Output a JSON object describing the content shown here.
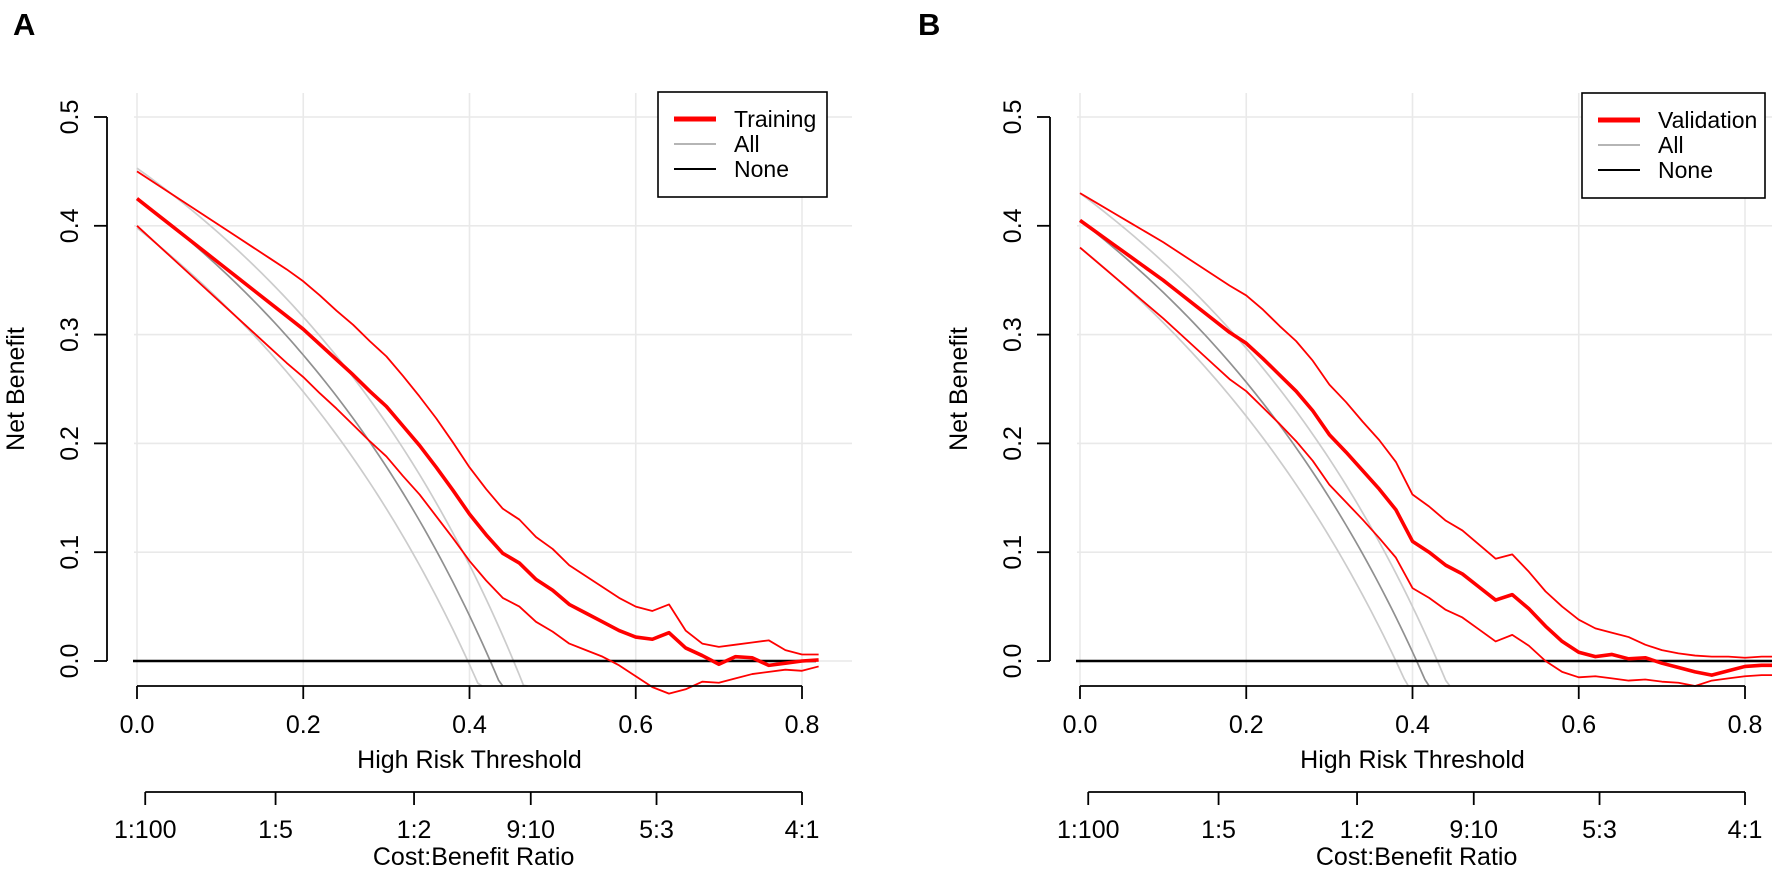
{
  "figure": {
    "background": "#ffffff",
    "panel_labels": [
      "A",
      "B"
    ]
  },
  "chart_data": [
    {
      "type": "line",
      "panel_label": "A",
      "xlabel": "High Risk Threshold",
      "ylabel": "Net Benefit",
      "xlabel2": "Cost:Benefit Ratio",
      "xlim": [
        -0.004,
        0.862
      ],
      "ylim": [
        -0.023,
        0.522
      ],
      "grid": true,
      "x_ticks": [
        0.0,
        0.2,
        0.4,
        0.6,
        0.8
      ],
      "x_tick_labels": [
        "0.0",
        "0.2",
        "0.4",
        "0.6",
        "0.8"
      ],
      "y_ticks": [
        0.0,
        0.1,
        0.2,
        0.3,
        0.4,
        0.5
      ],
      "y_tick_labels": [
        "0.0",
        "0.1",
        "0.2",
        "0.3",
        "0.4",
        "0.5"
      ],
      "cost_benefit_ticks": [
        {
          "label": "1:100",
          "threshold": 0.0099
        },
        {
          "label": "1:5",
          "threshold": 0.1667
        },
        {
          "label": "1:2",
          "threshold": 0.3333
        },
        {
          "label": "9:10",
          "threshold": 0.4737
        },
        {
          "label": "5:3",
          "threshold": 0.625
        },
        {
          "label": "4:1",
          "threshold": 0.8
        }
      ],
      "legend": {
        "position": "top-right",
        "entries": [
          {
            "label": "Training",
            "color": "#FF0000",
            "width": 5
          },
          {
            "label": "All",
            "color": "#b5b5b5",
            "width": 2
          },
          {
            "label": "None",
            "color": "#000000",
            "width": 2
          }
        ]
      },
      "thresholds": [
        0.0,
        0.02,
        0.04,
        0.06,
        0.08,
        0.1,
        0.12,
        0.14,
        0.16,
        0.18,
        0.2,
        0.22,
        0.24,
        0.26,
        0.28,
        0.3,
        0.32,
        0.34,
        0.36,
        0.38,
        0.4,
        0.42,
        0.44,
        0.46,
        0.48,
        0.5,
        0.52,
        0.54,
        0.56,
        0.58,
        0.6,
        0.62,
        0.64,
        0.66,
        0.68,
        0.7,
        0.72,
        0.74,
        0.76,
        0.78,
        0.8,
        0.82
      ],
      "series": [
        {
          "name": "Training",
          "role": "model",
          "color": "#FF0000",
          "values": [
            0.425,
            0.413,
            0.401,
            0.389,
            0.377,
            0.365,
            0.353,
            0.341,
            0.329,
            0.317,
            0.305,
            0.291,
            0.277,
            0.263,
            0.248,
            0.234,
            0.216,
            0.198,
            0.178,
            0.157,
            0.135,
            0.116,
            0.099,
            0.09,
            0.075,
            0.065,
            0.052,
            0.044,
            0.036,
            0.028,
            0.022,
            0.02,
            0.026,
            0.012,
            0.005,
            -0.003,
            0.004,
            0.003,
            -0.004,
            -0.002,
            0.0,
            0.001
          ]
        },
        {
          "name": "Training upper 95% CI",
          "role": "model-upper",
          "color": "#FF0000",
          "values": [
            0.45,
            0.44,
            0.43,
            0.42,
            0.41,
            0.4,
            0.39,
            0.38,
            0.37,
            0.36,
            0.349,
            0.336,
            0.322,
            0.309,
            0.294,
            0.28,
            0.262,
            0.243,
            0.223,
            0.201,
            0.178,
            0.158,
            0.14,
            0.13,
            0.114,
            0.103,
            0.088,
            0.078,
            0.068,
            0.058,
            0.05,
            0.046,
            0.052,
            0.028,
            0.016,
            0.013,
            0.015,
            0.017,
            0.019,
            0.01,
            0.006,
            0.006
          ]
        },
        {
          "name": "Training lower 95% CI",
          "role": "model-lower",
          "color": "#FF0000",
          "values": [
            0.4,
            0.386,
            0.372,
            0.358,
            0.344,
            0.33,
            0.316,
            0.302,
            0.288,
            0.274,
            0.261,
            0.246,
            0.232,
            0.217,
            0.202,
            0.188,
            0.17,
            0.153,
            0.133,
            0.113,
            0.092,
            0.074,
            0.058,
            0.05,
            0.036,
            0.027,
            0.016,
            0.01,
            0.004,
            -0.004,
            -0.014,
            -0.024,
            -0.03,
            -0.026,
            -0.019,
            -0.02,
            -0.016,
            -0.012,
            -0.01,
            -0.008,
            -0.009,
            -0.005
          ]
        },
        {
          "name": "All",
          "role": "treat-all",
          "color": "#909090",
          "ci_color": "#cccccc",
          "prevalence": 0.425,
          "prevalence_ci": [
            0.398,
            0.453
          ]
        },
        {
          "name": "None",
          "role": "treat-none",
          "color": "#000000",
          "value": 0.0
        }
      ]
    },
    {
      "type": "line",
      "panel_label": "B",
      "xlabel": "High Risk Threshold",
      "ylabel": "Net Benefit",
      "xlabel2": "Cost:Benefit Ratio",
      "xlim": [
        -0.004,
        0.833
      ],
      "ylim": [
        -0.023,
        0.522
      ],
      "grid": true,
      "x_ticks": [
        0.0,
        0.2,
        0.4,
        0.6,
        0.8
      ],
      "x_tick_labels": [
        "0.0",
        "0.2",
        "0.4",
        "0.6",
        "0.8"
      ],
      "y_ticks": [
        0.0,
        0.1,
        0.2,
        0.3,
        0.4,
        0.5
      ],
      "y_tick_labels": [
        "0.0",
        "0.1",
        "0.2",
        "0.3",
        "0.4",
        "0.5"
      ],
      "cost_benefit_ticks": [
        {
          "label": "1:100",
          "threshold": 0.0099
        },
        {
          "label": "1:5",
          "threshold": 0.1667
        },
        {
          "label": "1:2",
          "threshold": 0.3333
        },
        {
          "label": "9:10",
          "threshold": 0.4737
        },
        {
          "label": "5:3",
          "threshold": 0.625
        },
        {
          "label": "4:1",
          "threshold": 0.8
        }
      ],
      "legend": {
        "position": "top-right",
        "entries": [
          {
            "label": "Validation",
            "color": "#FF0000",
            "width": 5
          },
          {
            "label": "All",
            "color": "#b5b5b5",
            "width": 2
          },
          {
            "label": "None",
            "color": "#000000",
            "width": 2
          }
        ]
      },
      "thresholds": [
        0.0,
        0.02,
        0.04,
        0.06,
        0.08,
        0.1,
        0.12,
        0.14,
        0.16,
        0.18,
        0.2,
        0.22,
        0.24,
        0.26,
        0.28,
        0.3,
        0.32,
        0.34,
        0.36,
        0.38,
        0.4,
        0.42,
        0.44,
        0.46,
        0.48,
        0.5,
        0.52,
        0.54,
        0.56,
        0.58,
        0.6,
        0.62,
        0.64,
        0.66,
        0.68,
        0.7,
        0.72,
        0.74,
        0.76,
        0.78,
        0.8,
        0.82,
        0.84
      ],
      "series": [
        {
          "name": "Validation",
          "role": "model",
          "color": "#FF0000",
          "values": [
            0.405,
            0.394,
            0.383,
            0.372,
            0.361,
            0.35,
            0.338,
            0.326,
            0.314,
            0.302,
            0.292,
            0.278,
            0.263,
            0.248,
            0.23,
            0.208,
            0.192,
            0.175,
            0.158,
            0.139,
            0.11,
            0.1,
            0.088,
            0.08,
            0.068,
            0.056,
            0.061,
            0.048,
            0.032,
            0.018,
            0.008,
            0.004,
            0.006,
            0.002,
            0.003,
            -0.002,
            -0.006,
            -0.01,
            -0.013,
            -0.009,
            -0.005,
            -0.004,
            -0.004
          ]
        },
        {
          "name": "Validation upper 95% CI",
          "role": "model-upper",
          "color": "#FF0000",
          "values": [
            0.43,
            0.421,
            0.412,
            0.403,
            0.394,
            0.385,
            0.375,
            0.365,
            0.355,
            0.345,
            0.336,
            0.323,
            0.308,
            0.294,
            0.276,
            0.254,
            0.238,
            0.22,
            0.203,
            0.183,
            0.153,
            0.142,
            0.129,
            0.12,
            0.107,
            0.094,
            0.098,
            0.082,
            0.064,
            0.05,
            0.038,
            0.03,
            0.026,
            0.022,
            0.015,
            0.01,
            0.007,
            0.005,
            0.004,
            0.004,
            0.003,
            0.004,
            0.004
          ]
        },
        {
          "name": "Validation lower 95% CI",
          "role": "model-lower",
          "color": "#FF0000",
          "values": [
            0.38,
            0.367,
            0.354,
            0.341,
            0.328,
            0.315,
            0.301,
            0.287,
            0.273,
            0.259,
            0.248,
            0.233,
            0.218,
            0.202,
            0.184,
            0.162,
            0.146,
            0.13,
            0.113,
            0.095,
            0.067,
            0.058,
            0.047,
            0.04,
            0.029,
            0.018,
            0.024,
            0.014,
            0.0,
            -0.01,
            -0.015,
            -0.014,
            -0.016,
            -0.018,
            -0.017,
            -0.019,
            -0.02,
            -0.023,
            -0.018,
            -0.016,
            -0.014,
            -0.013,
            -0.013
          ]
        },
        {
          "name": "All",
          "role": "treat-all",
          "color": "#909090",
          "ci_color": "#cccccc",
          "prevalence": 0.405,
          "prevalence_ci": [
            0.38,
            0.43
          ]
        },
        {
          "name": "None",
          "role": "treat-none",
          "color": "#000000",
          "value": 0.0
        }
      ]
    }
  ],
  "colors": {
    "model_line": "#FF0000",
    "all_line": "#909090",
    "all_ci_line": "#cccccc",
    "none_line": "#000000",
    "grid_line": "#e9e9e9",
    "axis": "#000000"
  }
}
